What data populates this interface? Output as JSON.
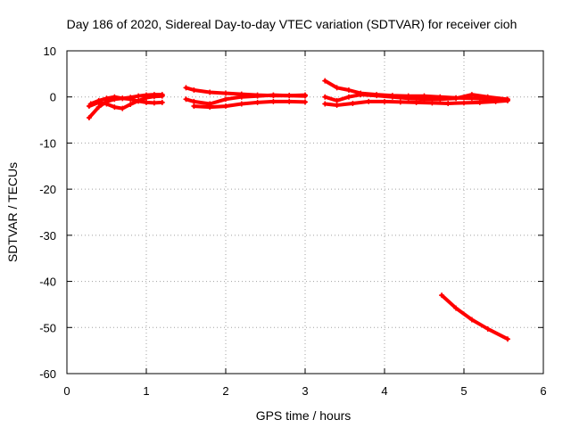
{
  "chart_data": {
    "type": "scatter",
    "title": "Day 186 of 2020, Sidereal Day-to-day VTEC variation (SDTVAR) for receiver cioh",
    "xlabel": "GPS time / hours",
    "ylabel": "SDTVAR / TECUs",
    "xlim": [
      0,
      6
    ],
    "ylim": [
      -60,
      10
    ],
    "xticks": [
      0,
      1,
      2,
      3,
      4,
      5,
      6
    ],
    "yticks": [
      10,
      0,
      -10,
      -20,
      -30,
      -40,
      -50,
      -60
    ],
    "grid": true,
    "colors": {
      "series": "#ff0000",
      "grid": "#a0a0a0",
      "frame": "#000000"
    },
    "series": [
      {
        "segments": [
          {
            "x": [
              0.28,
              0.4,
              0.5,
              0.6,
              0.7,
              0.8,
              0.9,
              1.0,
              1.1,
              1.2
            ],
            "y": [
              -4.5,
              -2.2,
              -1.0,
              -0.5,
              -0.3,
              -0.1,
              0.2,
              0.4,
              0.5,
              0.5
            ]
          },
          {
            "x": [
              0.28,
              0.4,
              0.5,
              0.6,
              0.7,
              0.8,
              0.9,
              1.0,
              1.1,
              1.2
            ],
            "y": [
              -2.0,
              -1.2,
              -1.5,
              -2.2,
              -2.5,
              -1.6,
              -0.8,
              -0.2,
              0.1,
              0.2
            ]
          },
          {
            "x": [
              0.3,
              0.4,
              0.5,
              0.6,
              0.7,
              0.8,
              0.9,
              1.0,
              1.1,
              1.2
            ],
            "y": [
              -1.5,
              -0.8,
              -0.3,
              0.0,
              -0.3,
              -0.5,
              -0.9,
              -1.2,
              -1.3,
              -1.2
            ]
          },
          {
            "x": [
              1.5,
              1.6,
              1.8,
              2.0,
              2.2,
              2.4,
              2.6,
              2.8,
              3.0
            ],
            "y": [
              2.0,
              1.5,
              1.0,
              0.8,
              0.6,
              0.4,
              0.3,
              0.3,
              0.4
            ]
          },
          {
            "x": [
              1.5,
              1.6,
              1.8,
              2.0,
              2.2,
              2.4,
              2.6,
              2.8,
              3.0
            ],
            "y": [
              -0.5,
              -1.0,
              -1.5,
              -0.5,
              0.0,
              0.2,
              0.4,
              0.3,
              0.2
            ]
          },
          {
            "x": [
              1.6,
              1.8,
              2.0,
              2.2,
              2.4,
              2.6,
              2.8,
              3.0
            ],
            "y": [
              -2.0,
              -2.2,
              -2.0,
              -1.5,
              -1.2,
              -1.0,
              -1.0,
              -1.1
            ]
          },
          {
            "x": [
              3.25,
              3.4,
              3.55,
              3.7,
              3.9,
              4.1,
              4.3,
              4.5,
              4.7,
              4.9,
              5.1,
              5.3,
              5.55
            ],
            "y": [
              3.5,
              2.0,
              1.5,
              0.8,
              0.5,
              0.3,
              0.2,
              0.2,
              0.0,
              -0.2,
              -0.3,
              -0.5,
              -0.6
            ]
          },
          {
            "x": [
              3.25,
              3.4,
              3.55,
              3.7,
              3.9,
              4.1,
              4.3,
              4.5,
              4.7,
              4.9,
              5.1,
              5.3,
              5.55
            ],
            "y": [
              0.0,
              -0.8,
              0.0,
              0.5,
              0.3,
              0.0,
              -0.3,
              -0.5,
              -0.5,
              -0.3,
              0.5,
              0.0,
              -0.5
            ]
          },
          {
            "x": [
              3.25,
              3.4,
              3.6,
              3.8,
              4.0,
              4.2,
              4.4,
              4.6,
              4.8,
              5.0,
              5.2,
              5.4,
              5.55
            ],
            "y": [
              -1.5,
              -1.8,
              -1.4,
              -1.0,
              -1.0,
              -1.1,
              -1.2,
              -1.3,
              -1.4,
              -1.3,
              -1.2,
              -1.0,
              -0.8
            ]
          },
          {
            "x": [
              4.72,
              4.9,
              5.1,
              5.3,
              5.55
            ],
            "y": [
              -43.0,
              -45.8,
              -48.3,
              -50.3,
              -52.5
            ]
          }
        ]
      }
    ]
  }
}
